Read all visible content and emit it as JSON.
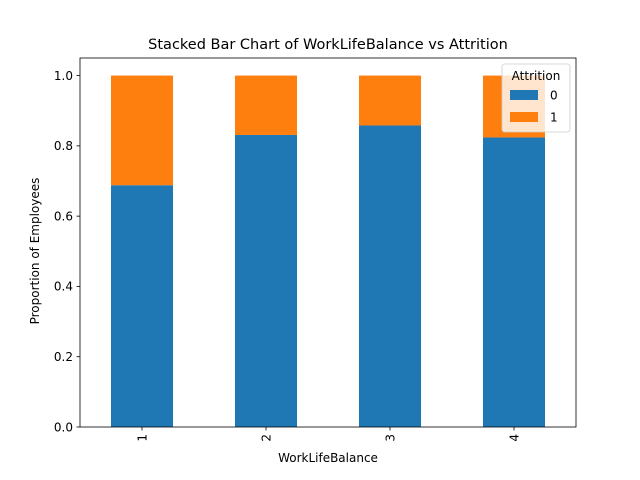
{
  "chart_data": {
    "type": "bar",
    "stacked": true,
    "title": "Stacked Bar Chart of WorkLifeBalance vs Attrition",
    "xlabel": "WorkLifeBalance",
    "ylabel": "Proportion of Employees",
    "categories": [
      "1",
      "2",
      "3",
      "4"
    ],
    "series": [
      {
        "name": "0",
        "color": "#1f77b4",
        "values": [
          0.688,
          0.831,
          0.858,
          0.824
        ]
      },
      {
        "name": "1",
        "color": "#ff7f0e",
        "values": [
          0.312,
          0.169,
          0.142,
          0.176
        ]
      }
    ],
    "ylim": [
      0,
      1.05
    ],
    "yticks": [
      "0.0",
      "0.2",
      "0.4",
      "0.6",
      "0.8",
      "1.0"
    ],
    "legend": {
      "title": "Attrition",
      "placement": "top-right"
    },
    "grid": false
  }
}
